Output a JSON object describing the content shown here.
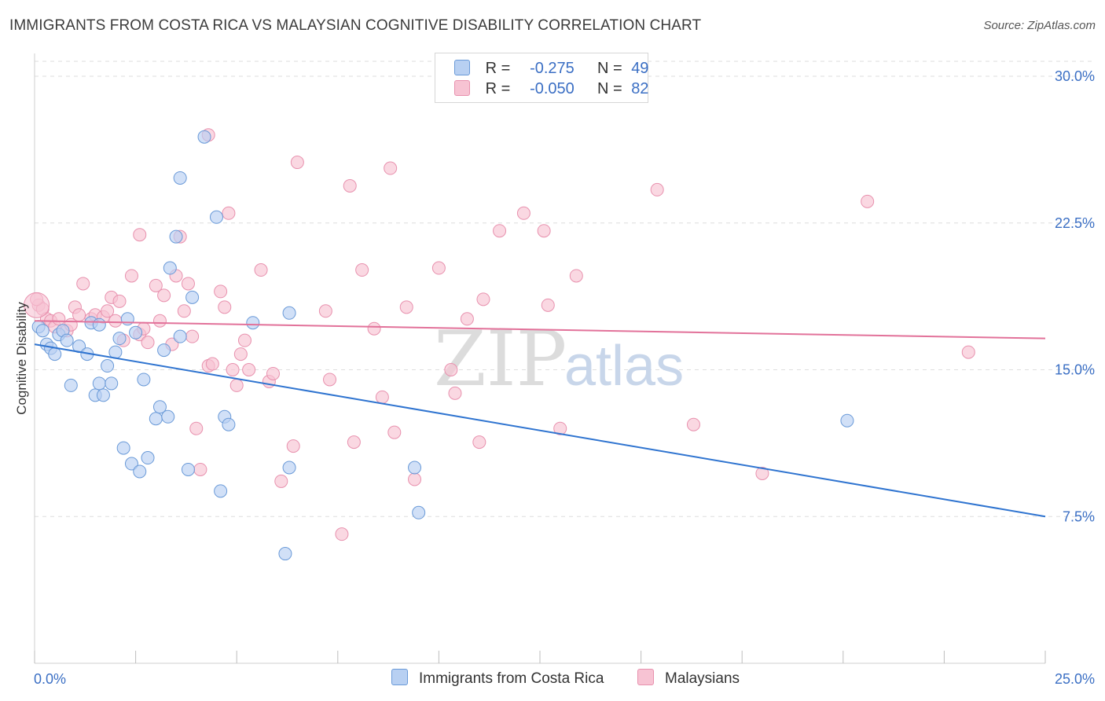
{
  "title": "IMMIGRANTS FROM COSTA RICA VS MALAYSIAN COGNITIVE DISABILITY CORRELATION CHART",
  "source": "Source: ZipAtlas.com",
  "legend": {
    "series1": {
      "r_label": "R =",
      "r_value": "-0.275",
      "n_label": "N =",
      "n_value": "49"
    },
    "series2": {
      "r_label": "R =",
      "r_value": "-0.050",
      "n_label": "N =",
      "n_value": "82"
    }
  },
  "bottom_legend": {
    "series1_label": "Immigrants from Costa Rica",
    "series2_label": "Malaysians"
  },
  "watermark": {
    "zip": "ZIP",
    "atlas": "atlas"
  },
  "colors": {
    "blue_fill": "#b8d0f2",
    "blue_stroke": "#6a9ad8",
    "blue_line": "#2f74d0",
    "pink_fill": "#f7c3d3",
    "pink_stroke": "#e891ae",
    "pink_line": "#e2729a",
    "grid": "#dedede",
    "axis_text": "#3b6fc4"
  },
  "chart_data": {
    "type": "scatter",
    "title": "IMMIGRANTS FROM COSTA RICA VS MALAYSIAN COGNITIVE DISABILITY CORRELATION CHART",
    "xlabel": "",
    "ylabel": "Cognitive Disability",
    "xlim": [
      0,
      25
    ],
    "ylim": [
      0,
      30
    ],
    "x_tick_labels": [
      "0.0%",
      "25.0%"
    ],
    "y_ticks": [
      7.5,
      15.0,
      22.5,
      30.0
    ],
    "y_tick_labels": [
      "7.5%",
      "15.0%",
      "22.5%",
      "30.0%"
    ],
    "series": [
      {
        "name": "Immigrants from Costa Rica",
        "color": "blue",
        "trend": {
          "x": [
            0,
            25
          ],
          "y": [
            16.3,
            7.5
          ]
        },
        "points": [
          [
            0.1,
            17.2
          ],
          [
            0.2,
            17.0
          ],
          [
            0.3,
            16.3
          ],
          [
            0.4,
            16.1
          ],
          [
            0.5,
            15.8
          ],
          [
            0.6,
            16.8
          ],
          [
            0.7,
            17.0
          ],
          [
            0.8,
            16.5
          ],
          [
            0.9,
            14.2
          ],
          [
            1.1,
            16.2
          ],
          [
            1.3,
            15.8
          ],
          [
            1.4,
            17.4
          ],
          [
            1.5,
            13.7
          ],
          [
            1.6,
            14.3
          ],
          [
            1.7,
            13.7
          ],
          [
            1.8,
            15.2
          ],
          [
            1.9,
            14.3
          ],
          [
            2.0,
            15.9
          ],
          [
            2.1,
            16.6
          ],
          [
            2.2,
            11.0
          ],
          [
            2.3,
            17.6
          ],
          [
            2.4,
            10.2
          ],
          [
            2.5,
            16.9
          ],
          [
            2.6,
            9.8
          ],
          [
            2.7,
            14.5
          ],
          [
            2.8,
            10.5
          ],
          [
            3.0,
            12.5
          ],
          [
            3.1,
            13.1
          ],
          [
            3.2,
            16.0
          ],
          [
            3.3,
            12.6
          ],
          [
            3.35,
            20.2
          ],
          [
            3.5,
            21.8
          ],
          [
            3.6,
            16.7
          ],
          [
            3.6,
            24.8
          ],
          [
            3.8,
            9.9
          ],
          [
            4.2,
            26.9
          ],
          [
            4.5,
            22.8
          ],
          [
            4.6,
            8.8
          ],
          [
            4.7,
            12.6
          ],
          [
            4.8,
            12.2
          ],
          [
            5.4,
            17.4
          ],
          [
            6.3,
            10.0
          ],
          [
            6.3,
            17.9
          ],
          [
            6.2,
            5.6
          ],
          [
            9.4,
            10.0
          ],
          [
            9.5,
            7.7
          ],
          [
            20.1,
            12.4
          ],
          [
            1.6,
            17.3
          ],
          [
            3.9,
            18.7
          ]
        ]
      },
      {
        "name": "Malaysians",
        "color": "pink",
        "trend": {
          "x": [
            0,
            25
          ],
          "y": [
            17.5,
            16.6
          ]
        },
        "points": [
          [
            0.1,
            18.3
          ],
          [
            0.2,
            18.1
          ],
          [
            0.3,
            17.6
          ],
          [
            0.4,
            17.5
          ],
          [
            0.5,
            17.2
          ],
          [
            0.6,
            17.6
          ],
          [
            0.8,
            17.0
          ],
          [
            0.9,
            17.3
          ],
          [
            1.0,
            18.2
          ],
          [
            1.1,
            17.8
          ],
          [
            1.2,
            19.4
          ],
          [
            1.4,
            17.6
          ],
          [
            1.5,
            17.8
          ],
          [
            1.7,
            17.7
          ],
          [
            1.8,
            18.0
          ],
          [
            1.9,
            18.7
          ],
          [
            2.0,
            17.5
          ],
          [
            2.1,
            18.5
          ],
          [
            2.2,
            16.5
          ],
          [
            2.4,
            19.8
          ],
          [
            2.6,
            16.8
          ],
          [
            2.6,
            21.9
          ],
          [
            2.7,
            17.1
          ],
          [
            2.8,
            16.4
          ],
          [
            3.0,
            19.3
          ],
          [
            3.1,
            17.5
          ],
          [
            3.2,
            18.8
          ],
          [
            3.4,
            16.3
          ],
          [
            3.5,
            19.8
          ],
          [
            3.6,
            21.8
          ],
          [
            3.7,
            18.0
          ],
          [
            3.8,
            19.4
          ],
          [
            3.9,
            16.7
          ],
          [
            4.0,
            12.0
          ],
          [
            4.1,
            9.9
          ],
          [
            4.3,
            27.0
          ],
          [
            4.3,
            15.2
          ],
          [
            4.4,
            15.3
          ],
          [
            4.6,
            19.0
          ],
          [
            4.7,
            18.2
          ],
          [
            4.8,
            23.0
          ],
          [
            4.9,
            15.0
          ],
          [
            5.0,
            14.2
          ],
          [
            5.1,
            15.8
          ],
          [
            5.2,
            16.5
          ],
          [
            5.3,
            15.0
          ],
          [
            5.6,
            20.1
          ],
          [
            5.8,
            14.4
          ],
          [
            5.9,
            14.8
          ],
          [
            6.1,
            9.3
          ],
          [
            6.5,
            25.6
          ],
          [
            6.4,
            11.1
          ],
          [
            7.2,
            18.0
          ],
          [
            7.3,
            14.5
          ],
          [
            7.6,
            6.6
          ],
          [
            7.8,
            24.4
          ],
          [
            7.9,
            11.3
          ],
          [
            8.1,
            20.1
          ],
          [
            8.4,
            17.1
          ],
          [
            8.6,
            13.6
          ],
          [
            8.8,
            25.3
          ],
          [
            8.9,
            11.8
          ],
          [
            9.2,
            18.2
          ],
          [
            9.4,
            9.4
          ],
          [
            10.0,
            20.2
          ],
          [
            10.3,
            15.0
          ],
          [
            10.4,
            13.8
          ],
          [
            10.7,
            17.6
          ],
          [
            11.0,
            11.3
          ],
          [
            11.1,
            18.6
          ],
          [
            11.5,
            22.1
          ],
          [
            12.1,
            23.0
          ],
          [
            12.6,
            22.1
          ],
          [
            12.7,
            18.3
          ],
          [
            13.0,
            12.0
          ],
          [
            13.4,
            19.8
          ],
          [
            15.4,
            24.2
          ],
          [
            16.3,
            12.2
          ],
          [
            18.0,
            9.7
          ],
          [
            20.6,
            23.6
          ],
          [
            23.1,
            15.9
          ],
          [
            0.05,
            18.6
          ]
        ]
      }
    ]
  }
}
